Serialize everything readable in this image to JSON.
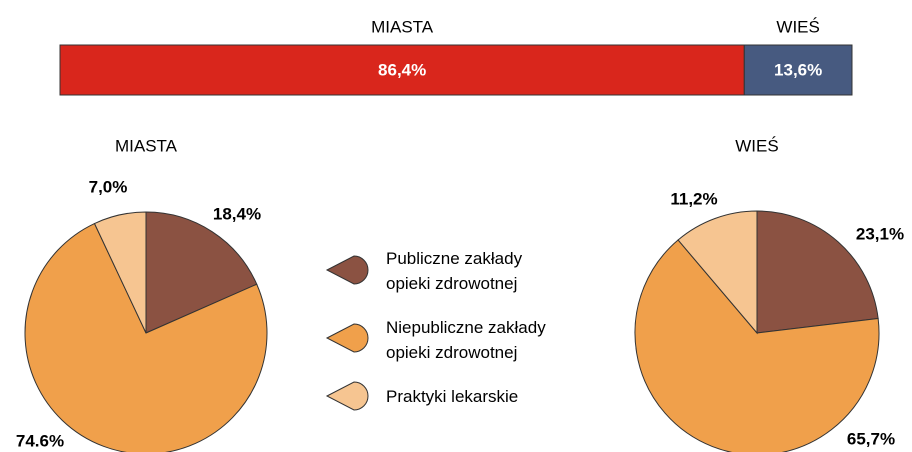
{
  "chart_data": [
    {
      "type": "bar",
      "orientation": "horizontal",
      "stacked": true,
      "xlim": [
        0,
        100
      ],
      "series": [
        {
          "name": "MIASTA",
          "color": "#d9261c",
          "values": [
            86.4
          ],
          "value_labels": [
            "86,4%"
          ]
        },
        {
          "name": "WIEŚ",
          "color": "#475a80",
          "values": [
            13.6
          ],
          "value_labels": [
            "13,6%"
          ]
        }
      ]
    },
    {
      "type": "pie",
      "title": "MIASTA",
      "values": [
        18.4,
        74.6,
        7.0
      ],
      "value_labels": [
        "18,4%",
        "74.6%",
        "7,0%"
      ]
    },
    {
      "type": "pie",
      "title": "WIEŚ",
      "values": [
        23.1,
        65.7,
        11.2
      ],
      "value_labels": [
        "23,1%",
        "65,7%",
        "11,2%"
      ]
    }
  ],
  "legend": {
    "items": [
      {
        "name": "Publiczne zakłady\nopieki zdrowotnej",
        "color": "#8b5242"
      },
      {
        "name": "Niepubliczne zakłady\nopieki zdrowotnej",
        "color": "#f0a04b"
      },
      {
        "name": "Praktyki lekarskie",
        "color": "#f6c591"
      }
    ]
  }
}
